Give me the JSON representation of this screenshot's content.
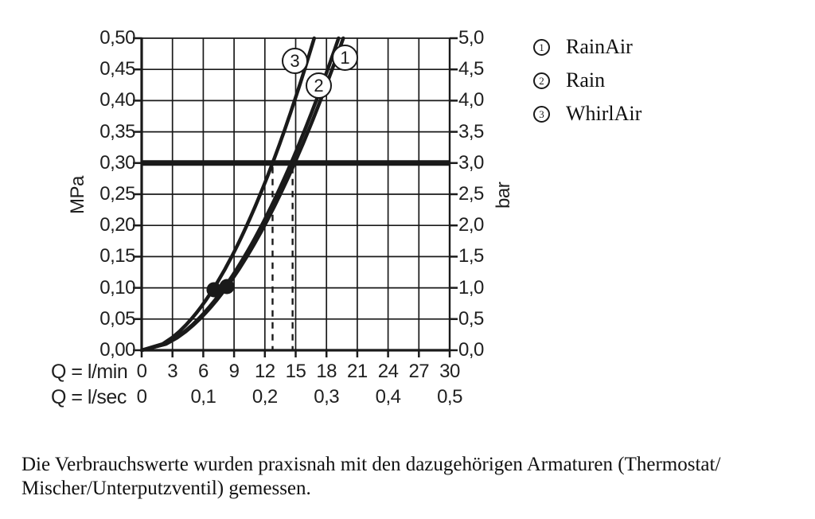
{
  "colors": {
    "ink": "#1a1a1a",
    "background": "#ffffff"
  },
  "chart_data": {
    "type": "line",
    "title": "",
    "x_axis": {
      "primary_label": "Q = l/min",
      "primary_ticks": [
        "0",
        "3",
        "6",
        "9",
        "12",
        "15",
        "18",
        "21",
        "24",
        "27",
        "30"
      ],
      "primary_step_lmin": 3,
      "secondary_label": "Q = l/sec",
      "secondary_ticks": [
        "0",
        "0,1",
        "0,2",
        "0,3",
        "0,4",
        "0,5"
      ],
      "min_lmin": 0,
      "max_lmin": 30
    },
    "y_axis_left": {
      "unit": "MPa",
      "ticks": [
        "0,50",
        "0,45",
        "0,40",
        "0,35",
        "0,30",
        "0,25",
        "0,20",
        "0,15",
        "0,10",
        "0,05",
        "0,00"
      ],
      "min_MPa": 0,
      "max_MPa": 0.5,
      "step_MPa": 0.05
    },
    "y_axis_right": {
      "unit": "bar",
      "ticks": [
        "5,0",
        "4,5",
        "4,0",
        "3,5",
        "3,0",
        "2,5",
        "2,0",
        "1,5",
        "1,0",
        "0,5",
        "0,0"
      ]
    },
    "grid": {
      "visible": true,
      "columns": 10,
      "rows": 10
    },
    "series": [
      {
        "number": "1",
        "name": "RainAir",
        "flow_lmin_at_3bar": 14.9,
        "curve_exponent": 1.85
      },
      {
        "number": "2",
        "name": "Rain",
        "flow_lmin_at_3bar": 14.55,
        "curve_exponent": 1.85
      },
      {
        "number": "3",
        "name": "WhirlAir",
        "flow_lmin_at_3bar": 12.75,
        "curve_exponent": 1.85
      }
    ],
    "reference_line": {
      "MPa": 0.3,
      "bar": 3.0
    },
    "dashed_flow_markers_lmin": [
      12.75,
      14.7
    ],
    "measured_points": [
      {
        "Q_lmin": 7.05,
        "P_MPa": 0.097
      },
      {
        "Q_lmin": 8.3,
        "P_MPa": 0.102
      }
    ]
  },
  "legend": {
    "items": [
      {
        "number": "1",
        "label": "RainAir"
      },
      {
        "number": "2",
        "label": "Rain"
      },
      {
        "number": "3",
        "label": "WhirlAir"
      }
    ]
  },
  "caption": {
    "line1": "Die Verbrauchswerte wurden praxisnah mit den dazugehörigen Armaturen (Thermostat/",
    "line2": "Mischer/Unterputzventil) gemessen."
  }
}
